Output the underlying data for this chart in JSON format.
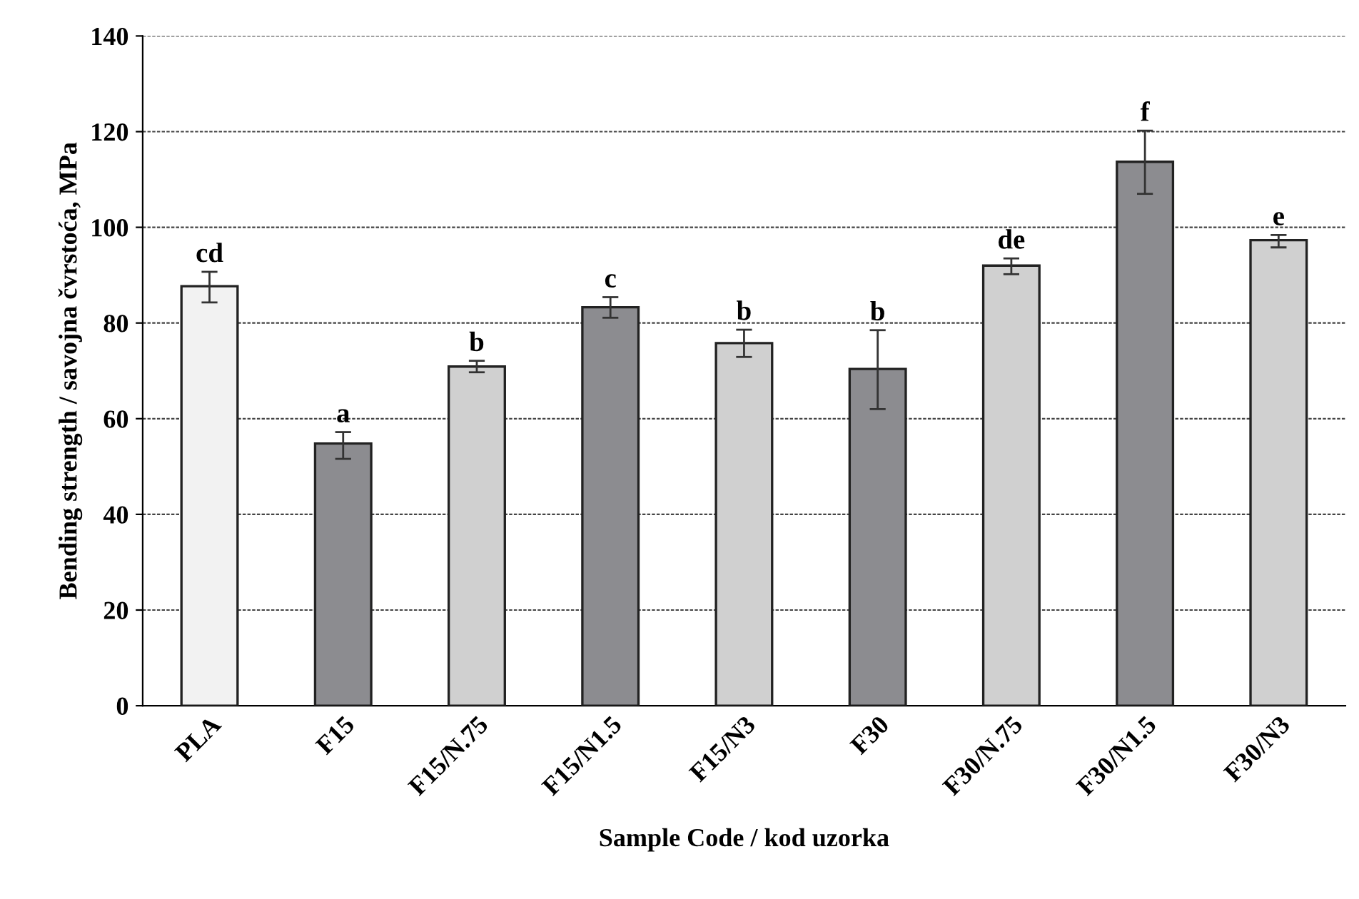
{
  "chart_data": {
    "type": "bar",
    "xlabel": "Sample Code / kod uzorka",
    "ylabel": "Bending strength / savojna čvrstoća, MPa",
    "categories": [
      "PLA",
      "F15",
      "F15/N.75",
      "F15/N1.5",
      "F15/N3",
      "F30",
      "F30/N.75",
      "F30/N1.5",
      "F30/N3"
    ],
    "values": [
      87.7,
      54.8,
      70.9,
      83.3,
      75.8,
      70.4,
      92.0,
      113.7,
      97.3
    ],
    "colors": [
      "#f2f2f2",
      "#8c8c90",
      "#d0d0d0",
      "#8c8c90",
      "#d0d0d0",
      "#8c8c90",
      "#d0d0d0",
      "#8c8c90",
      "#d0d0d0"
    ],
    "errors": [
      [
        84.3,
        90.7
      ],
      [
        51.6,
        57.2
      ],
      [
        69.7,
        72.1
      ],
      [
        81.1,
        85.4
      ],
      [
        72.9,
        78.6
      ],
      [
        62.0,
        78.5
      ],
      [
        90.2,
        93.5
      ],
      [
        107.0,
        120.2
      ],
      [
        95.8,
        98.4
      ]
    ],
    "ylim": [
      0,
      140
    ],
    "yticks": [
      0,
      20,
      40,
      60,
      80,
      100,
      120,
      140
    ],
    "grid": "y",
    "annotations": [
      {
        "text": "cd",
        "x": "PLA",
        "y": 90.7
      },
      {
        "text": "a",
        "x": "F15",
        "y": 57.2
      },
      {
        "text": "b",
        "x": "F15/N.75",
        "y": 72.1
      },
      {
        "text": "c",
        "x": "F15/N1.5",
        "y": 85.4
      },
      {
        "text": "b",
        "x": "F15/N3",
        "y": 78.6
      },
      {
        "text": "b",
        "x": "F30",
        "y": 78.5
      },
      {
        "text": "de",
        "x": "F30/N.75",
        "y": 93.5
      },
      {
        "text": "f",
        "x": "F30/N1.5",
        "y": 120.2
      },
      {
        "text": "e",
        "x": "F30/N3",
        "y": 98.4
      }
    ]
  }
}
